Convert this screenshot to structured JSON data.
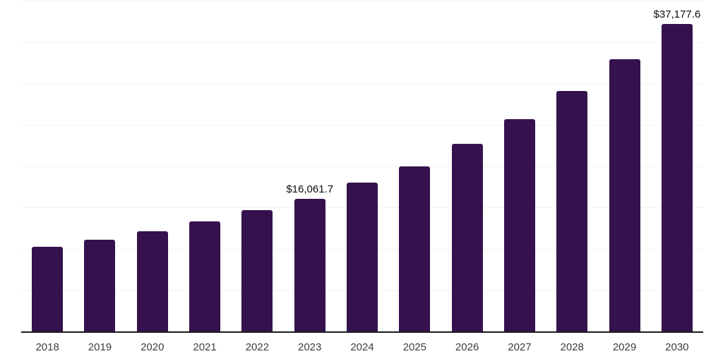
{
  "chart_data": {
    "type": "bar",
    "title": "",
    "xlabel": "",
    "ylabel": "",
    "categories": [
      "2018",
      "2019",
      "2020",
      "2021",
      "2022",
      "2023",
      "2024",
      "2025",
      "2026",
      "2027",
      "2028",
      "2029",
      "2030"
    ],
    "values": [
      10250,
      11100,
      12100,
      13300,
      14650,
      16061.7,
      18000,
      20000,
      22700,
      25700,
      29100,
      32900,
      37177.6
    ],
    "point_labels": [
      "",
      "",
      "",
      "",
      "",
      "$16,061.7",
      "",
      "",
      "",
      "",
      "",
      "",
      "$37,177.6"
    ],
    "ylim": [
      0,
      40000
    ],
    "grid_step": 5000,
    "grid_visible": true,
    "legend_position": "none",
    "value_prefix": "$",
    "colors": {
      "bar": "#35124E",
      "gridline": "#F2F2F2",
      "axis_line": "#1A1A1A",
      "tick_label": "#3D3D3D",
      "value_label": "#0D0D0D",
      "background": "#FFFFFF"
    }
  }
}
